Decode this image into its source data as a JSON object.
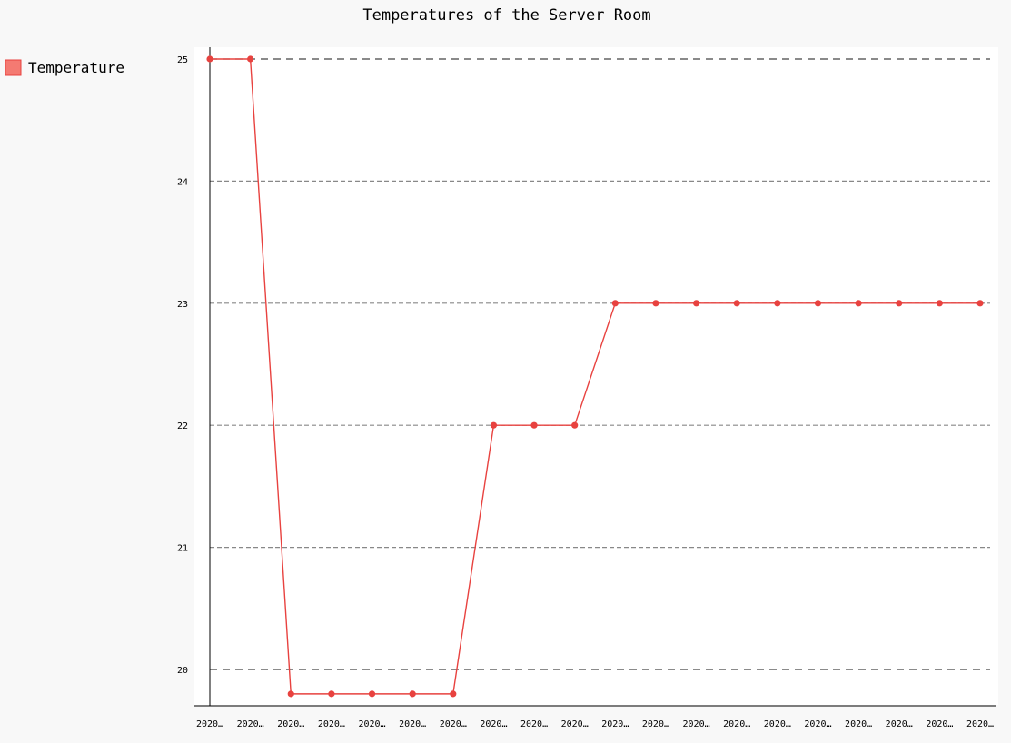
{
  "chart_data": {
    "type": "line",
    "title": "Temperatures of the Server Room",
    "xlabel": "",
    "ylabel": "",
    "x_labels": [
      "2020…",
      "2020…",
      "2020…",
      "2020…",
      "2020…",
      "2020…",
      "2020…",
      "2020…",
      "2020…",
      "2020…",
      "2020…",
      "2020…",
      "2020…",
      "2020…",
      "2020…",
      "2020…",
      "2020…",
      "2020…",
      "2020…",
      "2020…"
    ],
    "series": [
      {
        "name": "Temperature",
        "color": "#e8423f",
        "values": [
          25,
          25,
          19.8,
          19.8,
          19.8,
          19.8,
          19.8,
          22,
          22,
          22,
          23,
          23,
          23,
          23,
          23,
          23,
          23,
          23,
          23,
          23
        ]
      }
    ],
    "ylim": [
      19.8,
      25
    ],
    "y_ticks": [
      20,
      21,
      22,
      23,
      24,
      25
    ],
    "major_y_ticks": [
      20,
      25
    ],
    "grid": true,
    "legend_position": "top-left",
    "colors": {
      "background": "#f8f8f8",
      "plot_background": "#ffffff",
      "grid": "#888888",
      "major_grid": "#444444",
      "series": "#e8423f",
      "legend_swatch": "#f47a72"
    }
  }
}
